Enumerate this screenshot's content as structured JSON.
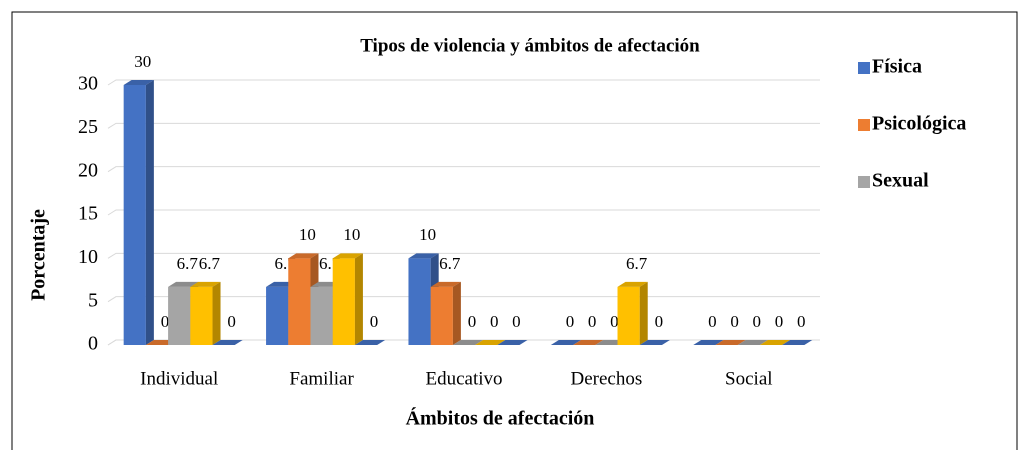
{
  "chart_data": {
    "type": "bar3d",
    "title": "Tipos de violencia y ámbitos de afectación",
    "x_label": "Ámbitos de afectación",
    "y_label": "Porcentaje",
    "categories": [
      "Individual",
      "Familiar",
      "Educativo",
      "Derechos",
      "Social"
    ],
    "series": [
      {
        "name": "Física",
        "color": "#4472c4",
        "values": [
          30,
          6.7,
          10,
          0,
          0
        ]
      },
      {
        "name": "Psicológica",
        "color": "#ed7d31",
        "values": [
          0,
          10,
          6.7,
          0,
          0
        ]
      },
      {
        "name": "Sexual",
        "color": "#a5a5a5",
        "values": [
          6.7,
          6.7,
          0,
          0,
          0
        ]
      },
      {
        "color": "#ffc000",
        "values": [
          6.7,
          10,
          0,
          6.7,
          0
        ]
      },
      {
        "color": "#4472c4",
        "values": [
          0,
          0,
          0,
          0,
          0
        ]
      }
    ],
    "ylim": [
      0,
      30
    ],
    "yticks": [
      0,
      5,
      10,
      15,
      20,
      25,
      30
    ],
    "grid": true,
    "legend": "right"
  }
}
